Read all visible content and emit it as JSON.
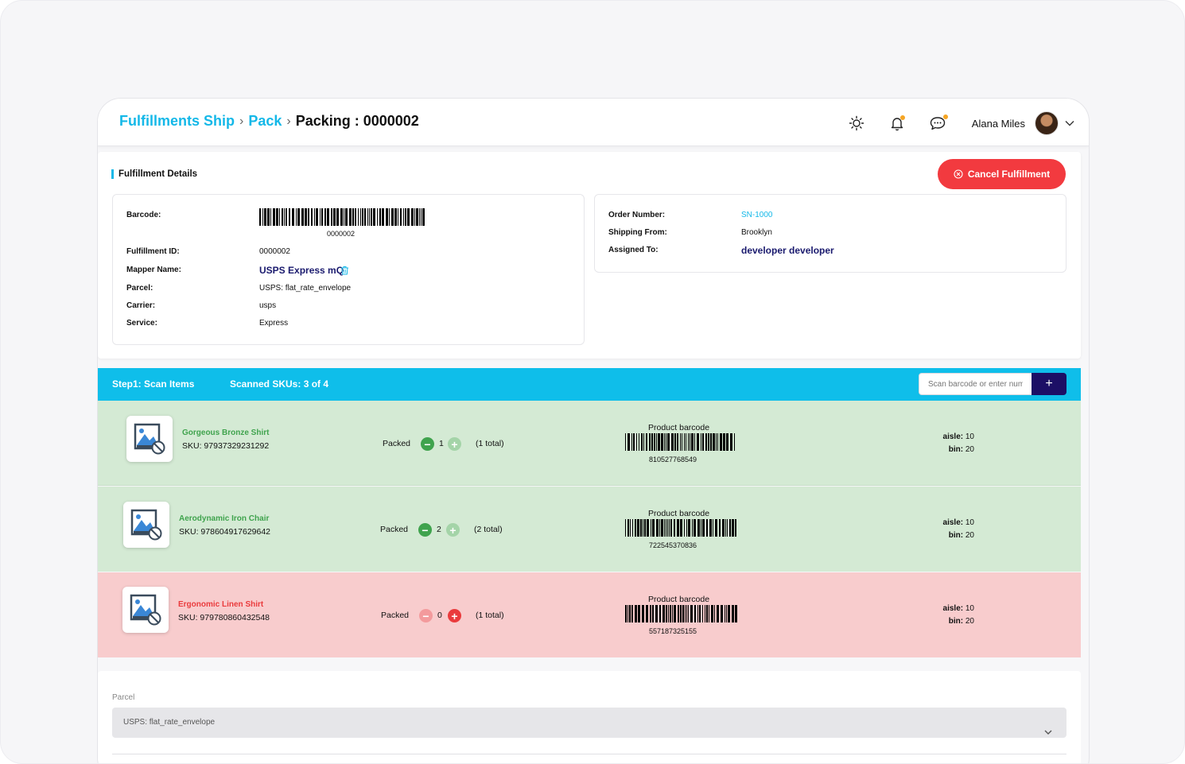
{
  "header": {
    "breadcrumb": [
      "Fulfillments Ship",
      "Pack"
    ],
    "current": "Packing : 0000002",
    "user_name": "Alana Miles",
    "icons": [
      "sun-icon",
      "bell-icon",
      "chat-icon",
      "chevron-down-icon"
    ]
  },
  "details": {
    "title": "Fulfillment Details",
    "cancel_label": "Cancel Fulfillment",
    "barcode_label": "Barcode:",
    "barcode_value": "0000002",
    "fulfillment_id_label": "Fulfillment ID:",
    "fulfillment_id": "0000002",
    "mapper_label": "Mapper Name:",
    "mapper_value": "USPS Express mQ",
    "parcel_label": "Parcel:",
    "parcel_value": "USPS: flat_rate_envelope",
    "carrier_label": "Carrier:",
    "carrier_value": "usps",
    "service_label": "Service:",
    "service_value": "Express",
    "order_label": "Order Number:",
    "order_value": "SN-1000",
    "shipping_label": "Shipping From:",
    "shipping_value": "Brooklyn",
    "assigned_label": "Assigned To:",
    "assigned_value": "developer developer"
  },
  "scan": {
    "step": "Step1: Scan Items",
    "count": "Scanned SKUs: 3 of 4",
    "placeholder": "Scan barcode or enter number",
    "add_label": "+"
  },
  "items": [
    {
      "name": "Gorgeous Bronze Shirt",
      "sku": "SKU: 97937329231292",
      "packed_label": "Packed",
      "qty": "1",
      "total": "(1 total)",
      "barcode_label": "Product barcode",
      "barcode": "810527768549",
      "aisle_label": "aisle:",
      "aisle": "10",
      "bin_label": "bin:",
      "bin": "20"
    },
    {
      "name": "Aerodynamic Iron Chair",
      "sku": "SKU: 978604917629642",
      "packed_label": "Packed",
      "qty": "2",
      "total": "(2 total)",
      "barcode_label": "Product barcode",
      "barcode": "722545370836",
      "aisle_label": "aisle:",
      "aisle": "10",
      "bin_label": "bin:",
      "bin": "20"
    },
    {
      "name": "Ergonomic Linen Shirt",
      "sku": "SKU: 979780860432548",
      "packed_label": "Packed",
      "qty": "0",
      "total": "(1 total)",
      "barcode_label": "Product barcode",
      "barcode": "557187325155",
      "aisle_label": "aisle:",
      "aisle": "10",
      "bin_label": "bin:",
      "bin": "20"
    }
  ],
  "parcel": {
    "label": "Parcel",
    "selected": "USPS: flat_rate_envelope"
  },
  "colors": {
    "accent": "#14b8e8",
    "danger": "#f23a3f",
    "navy": "#1c0f66",
    "row_ok": "#d4ead4",
    "row_missing": "#f8cccd"
  }
}
